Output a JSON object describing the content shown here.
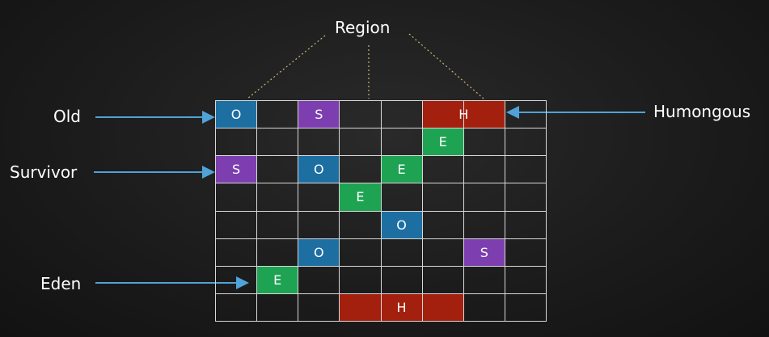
{
  "title": "Region",
  "labels": {
    "old": "Old",
    "survivor": "Survivor",
    "eden": "Eden",
    "humongous": "Humongous"
  },
  "colors": {
    "O": "#1d6fa2",
    "S": "#7d3fb0",
    "E": "#1ea353",
    "H": "#a3200f",
    "arrow": "#4fa3d8",
    "dotted": "#c9b87a"
  },
  "grid": {
    "rows": 8,
    "cols": 8
  },
  "cells": [
    {
      "row": 0,
      "col": 0,
      "span": 1,
      "type": "O",
      "text": "O"
    },
    {
      "row": 0,
      "col": 2,
      "span": 1,
      "type": "S",
      "text": "S"
    },
    {
      "row": 0,
      "col": 5,
      "span": 2,
      "type": "H",
      "text": "H"
    },
    {
      "row": 1,
      "col": 5,
      "span": 1,
      "type": "E",
      "text": "E"
    },
    {
      "row": 2,
      "col": 0,
      "span": 1,
      "type": "S",
      "text": "S"
    },
    {
      "row": 2,
      "col": 2,
      "span": 1,
      "type": "O",
      "text": "O"
    },
    {
      "row": 2,
      "col": 4,
      "span": 1,
      "type": "E",
      "text": "E"
    },
    {
      "row": 3,
      "col": 3,
      "span": 1,
      "type": "E",
      "text": "E"
    },
    {
      "row": 4,
      "col": 4,
      "span": 1,
      "type": "O",
      "text": "O"
    },
    {
      "row": 5,
      "col": 2,
      "span": 1,
      "type": "O",
      "text": "O"
    },
    {
      "row": 5,
      "col": 6,
      "span": 1,
      "type": "S",
      "text": "S"
    },
    {
      "row": 6,
      "col": 1,
      "span": 1,
      "type": "E",
      "text": "E"
    },
    {
      "row": 7,
      "col": 3,
      "span": 3,
      "type": "H",
      "text": "H"
    }
  ]
}
